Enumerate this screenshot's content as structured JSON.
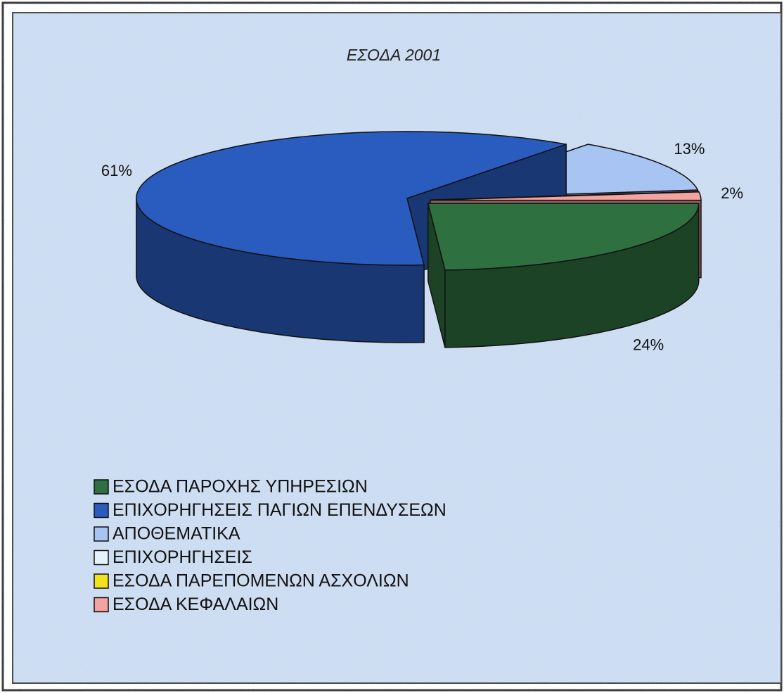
{
  "chart_data": {
    "type": "pie3d",
    "title": "ΕΣΟΔΑ 2001",
    "categories": [
      "ΕΣΟΔΑ ΠΑΡΟΧΗΣ ΥΠΗΡΕΣΙΩΝ",
      "ΕΠΙΧΟΡΗΓΗΣΕΙΣ ΠΑΓΙΩΝ ΕΠΕΝΔΥΣΕΩΝ",
      "ΑΠΟΘΕΜΑΤΙΚΑ",
      "ΕΠΙΧΟΡΗΓΗΣΕΙΣ",
      "ΕΣΟΔΑ ΠΑΡΕΠΟΜΕΝΩΝ ΑΣΧΟΛΙΩΝ",
      "ΕΣΟΔΑ ΚΕΦΑΛΑΙΩΝ"
    ],
    "values": [
      24,
      61,
      13,
      0,
      0,
      2
    ],
    "value_labels": [
      "24%",
      "61%",
      "13%",
      null,
      null,
      "2%"
    ],
    "colors": [
      "#2f7040",
      "#2a5cc0",
      "#a8c4f2",
      "#e4f2fa",
      "#f2e21e",
      "#f4a4a0"
    ],
    "legend": "bottom-left"
  }
}
